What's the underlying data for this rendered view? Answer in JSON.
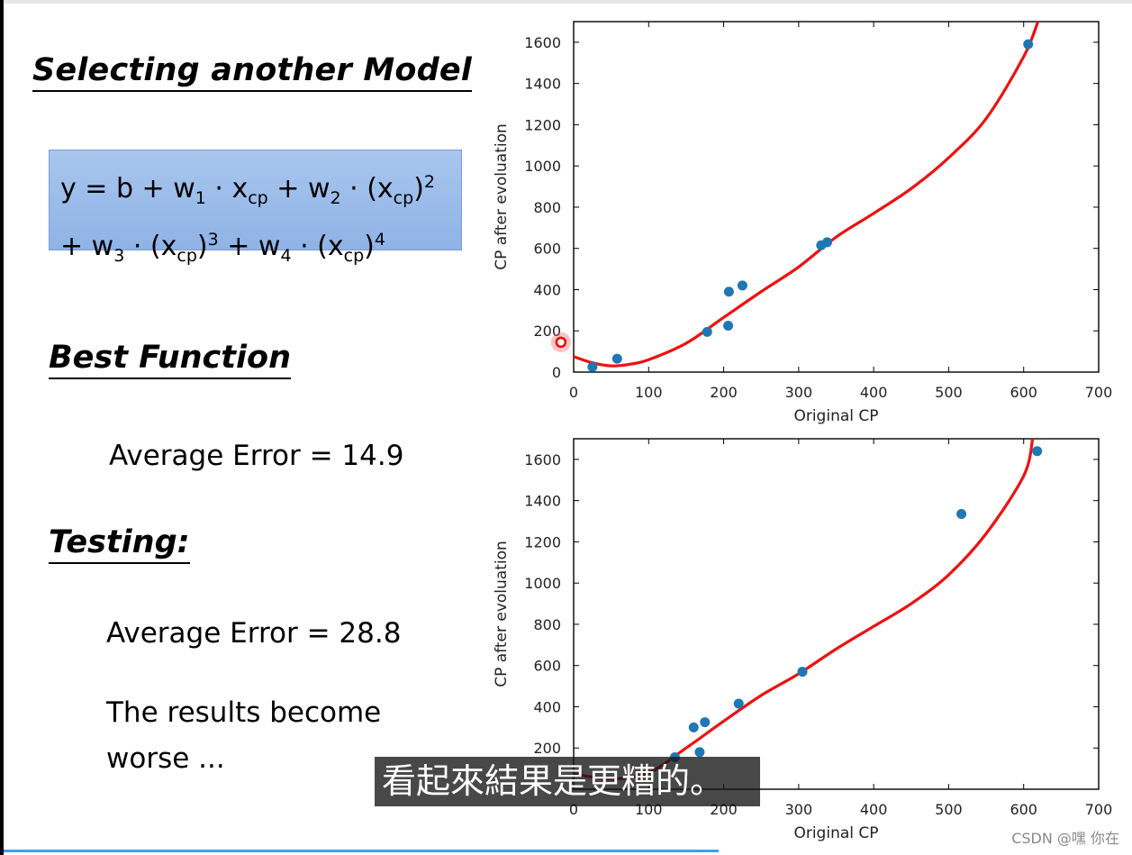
{
  "slide": {
    "title": "Selecting another Model",
    "formula": {
      "line1": {
        "a": "y = b + w",
        "s1": "1",
        "b": " · x",
        "s2": "cp",
        "c": " + w",
        "s3": "2",
        "d": " · (x",
        "s4": "cp",
        "e": ")",
        "p1": "2"
      },
      "line2": {
        "a": "+ w",
        "s1": "3",
        "b": " · (x",
        "s2": "cp",
        "c": ")",
        "p1": "3",
        "d": " + w",
        "s3": "4",
        "e": " · (x",
        "s4": "cp",
        "f": ")",
        "p2": "4"
      }
    },
    "best_function_heading": "Best Function",
    "train_error": "Average Error = 14.9",
    "testing_heading": "Testing:",
    "test_error": "Average Error = 28.8",
    "result_line1": "The results become",
    "result_line2": "worse ..."
  },
  "subtitle": "看起來結果是更糟的。",
  "watermark": "CSDN @嘿 你在",
  "colors": {
    "point": "#1f77b4",
    "curve": "#ee1111",
    "formula_bg": "#9dbdea",
    "progress": "#3fa2e6"
  },
  "chart_data": [
    {
      "type": "scatter",
      "xlabel": "Original CP",
      "ylabel": "CP after evoluation",
      "xlim": [
        0,
        700
      ],
      "ylim": [
        0,
        1700
      ],
      "xticks": [
        0,
        100,
        200,
        300,
        400,
        500,
        600,
        700
      ],
      "yticks": [
        0,
        200,
        400,
        600,
        800,
        1000,
        1200,
        1400,
        1600
      ],
      "points": [
        {
          "x": 25,
          "y": 25
        },
        {
          "x": 58,
          "y": 65
        },
        {
          "x": 178,
          "y": 195
        },
        {
          "x": 206,
          "y": 225
        },
        {
          "x": 207,
          "y": 390
        },
        {
          "x": 225,
          "y": 420
        },
        {
          "x": 330,
          "y": 615
        },
        {
          "x": 338,
          "y": 630
        },
        {
          "x": 606,
          "y": 1590
        }
      ],
      "curve": [
        [
          0,
          75
        ],
        [
          25,
          45
        ],
        [
          50,
          30
        ],
        [
          75,
          38
        ],
        [
          100,
          60
        ],
        [
          150,
          140
        ],
        [
          200,
          265
        ],
        [
          250,
          390
        ],
        [
          300,
          510
        ],
        [
          350,
          655
        ],
        [
          400,
          770
        ],
        [
          450,
          890
        ],
        [
          500,
          1040
        ],
        [
          550,
          1230
        ],
        [
          600,
          1530
        ],
        [
          620,
          1710
        ]
      ],
      "highlight_point": {
        "x": -17,
        "y": 145
      }
    },
    {
      "type": "scatter",
      "xlabel": "Original CP",
      "ylabel": "CP after evoluation",
      "xlim": [
        0,
        700
      ],
      "ylim": [
        0,
        1700
      ],
      "xticks": [
        0,
        100,
        200,
        300,
        400,
        500,
        600,
        700
      ],
      "yticks": [
        200,
        400,
        600,
        800,
        1000,
        1200,
        1400,
        1600
      ],
      "points": [
        {
          "x": 135,
          "y": 155
        },
        {
          "x": 160,
          "y": 300
        },
        {
          "x": 168,
          "y": 180
        },
        {
          "x": 175,
          "y": 325
        },
        {
          "x": 220,
          "y": 415
        },
        {
          "x": 305,
          "y": 570
        },
        {
          "x": 517,
          "y": 1335
        },
        {
          "x": 618,
          "y": 1640
        }
      ],
      "curve": [
        [
          0,
          75
        ],
        [
          50,
          50
        ],
        [
          100,
          80
        ],
        [
          150,
          200
        ],
        [
          200,
          330
        ],
        [
          250,
          455
        ],
        [
          300,
          560
        ],
        [
          350,
          680
        ],
        [
          400,
          790
        ],
        [
          450,
          900
        ],
        [
          500,
          1040
        ],
        [
          550,
          1240
        ],
        [
          600,
          1520
        ],
        [
          612,
          1700
        ]
      ]
    }
  ]
}
